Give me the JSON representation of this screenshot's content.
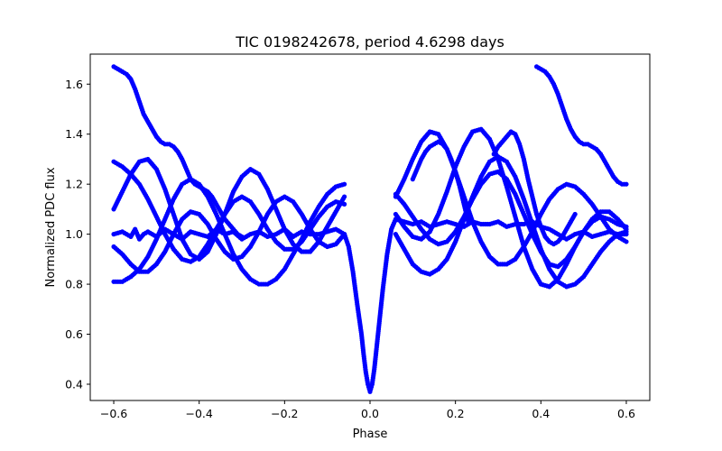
{
  "chart_data": {
    "type": "scatter",
    "title": "TIC 0198242678, period 4.6298 days",
    "xlabel": "Phase",
    "ylabel": "Normalized PDC flux",
    "xlim": [
      -0.655,
      0.655
    ],
    "ylim": [
      0.335,
      1.72
    ],
    "xticks": [
      -0.6,
      -0.4,
      -0.2,
      0.0,
      0.2,
      0.4,
      0.6
    ],
    "xtick_labels": [
      "−0.6",
      "−0.4",
      "−0.2",
      "0.0",
      "0.2",
      "0.4",
      "0.6"
    ],
    "yticks": [
      0.4,
      0.6,
      0.8,
      1.0,
      1.2,
      1.4,
      1.6
    ],
    "ytick_labels": [
      "0.4",
      "0.6",
      "0.8",
      "1.0",
      "1.2",
      "1.4",
      "1.6"
    ],
    "grid": false,
    "marker_color": "#0000ff",
    "series": [
      {
        "x": [
          -0.6,
          -0.58,
          -0.56,
          -0.55,
          -0.54,
          -0.53,
          -0.52,
          -0.5,
          -0.48,
          -0.46,
          -0.44,
          -0.42,
          -0.4,
          -0.38,
          -0.36,
          -0.34,
          -0.32,
          -0.3,
          -0.28,
          -0.26,
          -0.24,
          -0.22,
          -0.2,
          -0.18,
          -0.16,
          -0.14,
          -0.12,
          -0.1,
          -0.08,
          -0.06,
          -0.05,
          -0.04,
          -0.03,
          -0.02,
          -0.015,
          -0.01,
          -0.005,
          0.0,
          0.005,
          0.01,
          0.015,
          0.02,
          0.03,
          0.04,
          0.05,
          0.06,
          0.08,
          0.1,
          0.12,
          0.14,
          0.16,
          0.18,
          0.2,
          0.22,
          0.24,
          0.26,
          0.28,
          0.3,
          0.32,
          0.34,
          0.36,
          0.38,
          0.4,
          0.42,
          0.44,
          0.46,
          0.48,
          0.5,
          0.52,
          0.54,
          0.56,
          0.58,
          0.6
        ],
        "y": [
          1.0,
          1.01,
          0.99,
          1.02,
          0.98,
          1.0,
          1.01,
          0.99,
          1.02,
          1.0,
          0.98,
          1.01,
          1.0,
          0.99,
          1.02,
          1.0,
          1.01,
          0.98,
          1.0,
          1.01,
          0.99,
          1.0,
          1.02,
          0.99,
          1.01,
          1.0,
          1.0,
          1.01,
          1.02,
          1.0,
          0.95,
          0.85,
          0.72,
          0.6,
          0.52,
          0.45,
          0.4,
          0.37,
          0.4,
          0.46,
          0.54,
          0.62,
          0.78,
          0.92,
          1.02,
          1.06,
          1.05,
          1.04,
          1.05,
          1.03,
          1.04,
          1.05,
          1.04,
          1.03,
          1.05,
          1.04,
          1.04,
          1.05,
          1.03,
          1.04,
          1.04,
          1.05,
          1.03,
          1.02,
          1.0,
          0.98,
          1.0,
          1.01,
          0.99,
          1.0,
          1.01,
          1.0,
          1.0
        ]
      },
      {
        "x": [
          -0.6,
          -0.58,
          -0.56,
          -0.54,
          -0.52,
          -0.5,
          -0.48,
          -0.46,
          -0.44,
          -0.42,
          -0.4,
          -0.38,
          -0.36,
          -0.34,
          -0.32,
          -0.3,
          -0.28,
          -0.26,
          -0.24,
          -0.22,
          -0.2,
          -0.18,
          -0.16,
          -0.14,
          -0.12,
          -0.1,
          -0.08,
          -0.06,
          0.06,
          0.08,
          0.1,
          0.12,
          0.14,
          0.16,
          0.18,
          0.2,
          0.22,
          0.24,
          0.26,
          0.28,
          0.3,
          0.32,
          0.34,
          0.36,
          0.38,
          0.4,
          0.42,
          0.44,
          0.46,
          0.48,
          0.5,
          0.52,
          0.54,
          0.56,
          0.58,
          0.6
        ],
        "y": [
          1.29,
          1.27,
          1.24,
          1.2,
          1.14,
          1.07,
          1.0,
          0.94,
          0.9,
          0.89,
          0.91,
          0.96,
          1.02,
          1.08,
          1.13,
          1.15,
          1.13,
          1.08,
          1.02,
          0.97,
          0.94,
          0.94,
          0.97,
          1.02,
          1.07,
          1.11,
          1.13,
          1.12,
          1.15,
          1.22,
          1.3,
          1.37,
          1.41,
          1.4,
          1.34,
          1.25,
          1.15,
          1.05,
          0.97,
          0.91,
          0.88,
          0.88,
          0.9,
          0.95,
          1.01,
          1.08,
          1.14,
          1.18,
          1.2,
          1.19,
          1.16,
          1.12,
          1.07,
          1.02,
          0.99,
          0.97
        ]
      },
      {
        "x": [
          -0.6,
          -0.58,
          -0.56,
          -0.54,
          -0.52,
          -0.5,
          -0.48,
          -0.46,
          -0.44,
          -0.42,
          -0.4,
          -0.38,
          -0.36,
          -0.34,
          -0.32,
          -0.3,
          -0.28,
          -0.26,
          -0.24,
          -0.22,
          -0.2,
          -0.18,
          -0.16,
          -0.14,
          -0.12,
          -0.1,
          -0.08,
          -0.06,
          0.06,
          0.08,
          0.1,
          0.12,
          0.14,
          0.16,
          0.18,
          0.2,
          0.22,
          0.24,
          0.26,
          0.28,
          0.3,
          0.32,
          0.34,
          0.36,
          0.38,
          0.4,
          0.42,
          0.44,
          0.46,
          0.48,
          0.5,
          0.52,
          0.54,
          0.56,
          0.58,
          0.6
        ],
        "y": [
          0.81,
          0.81,
          0.83,
          0.86,
          0.91,
          0.98,
          1.06,
          1.14,
          1.2,
          1.22,
          1.2,
          1.15,
          1.08,
          1.0,
          0.92,
          0.86,
          0.82,
          0.8,
          0.8,
          0.82,
          0.86,
          0.92,
          0.98,
          1.05,
          1.11,
          1.16,
          1.19,
          1.2,
          1.0,
          0.94,
          0.88,
          0.85,
          0.84,
          0.86,
          0.9,
          0.97,
          1.06,
          1.15,
          1.23,
          1.29,
          1.31,
          1.29,
          1.23,
          1.14,
          1.04,
          0.94,
          0.86,
          0.81,
          0.79,
          0.8,
          0.83,
          0.88,
          0.93,
          0.97,
          1.0,
          1.01
        ]
      },
      {
        "x": [
          -0.6,
          -0.58,
          -0.56,
          -0.54,
          -0.52,
          -0.5,
          -0.48,
          -0.46,
          -0.44,
          -0.42,
          -0.4,
          -0.38,
          -0.36,
          -0.34,
          -0.32,
          -0.3,
          -0.28,
          -0.26,
          -0.24,
          -0.22,
          -0.2,
          -0.18,
          -0.16,
          -0.14,
          -0.12,
          -0.1,
          -0.08,
          -0.06,
          0.06,
          0.08,
          0.1,
          0.12,
          0.14,
          0.16,
          0.18,
          0.2,
          0.22,
          0.24,
          0.26,
          0.28,
          0.3,
          0.32,
          0.34,
          0.36,
          0.38,
          0.4,
          0.42,
          0.44,
          0.46,
          0.48,
          0.5,
          0.52,
          0.54,
          0.56,
          0.58,
          0.6
        ],
        "y": [
          1.1,
          1.17,
          1.24,
          1.29,
          1.3,
          1.26,
          1.18,
          1.08,
          0.98,
          0.92,
          0.9,
          0.93,
          1.0,
          1.08,
          1.17,
          1.23,
          1.26,
          1.24,
          1.18,
          1.1,
          1.02,
          0.96,
          0.93,
          0.93,
          0.97,
          1.03,
          1.09,
          1.15,
          1.08,
          1.03,
          0.99,
          0.98,
          1.01,
          1.08,
          1.17,
          1.27,
          1.35,
          1.41,
          1.42,
          1.38,
          1.3,
          1.19,
          1.07,
          0.95,
          0.86,
          0.8,
          0.79,
          0.82,
          0.88,
          0.95,
          1.01,
          1.05,
          1.07,
          1.06,
          1.04,
          1.03
        ]
      },
      {
        "x": [
          -0.6,
          -0.58,
          -0.56,
          -0.54,
          -0.52,
          -0.5,
          -0.48,
          -0.46,
          -0.44,
          -0.42,
          -0.4,
          -0.38,
          -0.36,
          -0.34,
          -0.32,
          -0.3,
          -0.28,
          -0.26,
          -0.24,
          -0.22,
          -0.2,
          -0.18,
          -0.16,
          -0.14,
          -0.12,
          -0.1,
          -0.08,
          -0.06,
          0.06,
          0.08,
          0.1,
          0.12,
          0.14,
          0.16,
          0.18,
          0.2,
          0.22,
          0.24,
          0.26,
          0.28,
          0.3,
          0.32,
          0.34,
          0.36,
          0.38,
          0.4,
          0.42,
          0.44,
          0.46,
          0.48,
          0.5,
          0.52,
          0.54,
          0.56,
          0.58,
          0.6
        ],
        "y": [
          0.95,
          0.92,
          0.88,
          0.85,
          0.85,
          0.88,
          0.93,
          1.0,
          1.06,
          1.09,
          1.08,
          1.04,
          0.98,
          0.93,
          0.9,
          0.91,
          0.95,
          1.01,
          1.08,
          1.13,
          1.15,
          1.13,
          1.08,
          1.02,
          0.97,
          0.95,
          0.96,
          1.0,
          1.16,
          1.12,
          1.07,
          1.02,
          0.98,
          0.96,
          0.97,
          1.01,
          1.07,
          1.14,
          1.2,
          1.24,
          1.25,
          1.22,
          1.16,
          1.08,
          1.0,
          0.93,
          0.88,
          0.87,
          0.9,
          0.95,
          1.01,
          1.06,
          1.09,
          1.09,
          1.06,
          1.02
        ]
      },
      {
        "x": [
          -0.6,
          -0.59,
          -0.58,
          -0.57,
          -0.56,
          -0.55,
          -0.54,
          -0.53,
          -0.52,
          -0.51,
          -0.5,
          -0.49,
          -0.48,
          -0.47,
          -0.46,
          -0.45,
          -0.44,
          -0.43,
          -0.42,
          -0.41,
          -0.4,
          -0.39,
          -0.38,
          -0.37,
          -0.36,
          -0.35,
          -0.34,
          -0.33,
          -0.32,
          -0.31,
          -0.3
        ],
        "y": [
          1.67,
          1.66,
          1.65,
          1.64,
          1.62,
          1.58,
          1.53,
          1.48,
          1.45,
          1.42,
          1.39,
          1.37,
          1.36,
          1.36,
          1.35,
          1.33,
          1.3,
          1.26,
          1.22,
          1.2,
          1.19,
          1.18,
          1.17,
          1.15,
          1.12,
          1.09,
          1.06,
          1.04,
          1.02,
          1.0,
          0.99
        ]
      },
      {
        "x": [
          0.39,
          0.4,
          0.41,
          0.42,
          0.43,
          0.44,
          0.45,
          0.46,
          0.47,
          0.48,
          0.49,
          0.5,
          0.51,
          0.52,
          0.53,
          0.54,
          0.55,
          0.56,
          0.57,
          0.58,
          0.59,
          0.6
        ],
        "y": [
          1.67,
          1.66,
          1.65,
          1.63,
          1.6,
          1.56,
          1.51,
          1.46,
          1.42,
          1.39,
          1.37,
          1.36,
          1.36,
          1.35,
          1.34,
          1.32,
          1.29,
          1.26,
          1.23,
          1.21,
          1.2,
          1.2
        ]
      },
      {
        "x": [
          0.29,
          0.3,
          0.31,
          0.32,
          0.33,
          0.34,
          0.35,
          0.36,
          0.37,
          0.38,
          0.39,
          0.4,
          0.41,
          0.42,
          0.43,
          0.44,
          0.45,
          0.46,
          0.47,
          0.48
        ],
        "y": [
          1.32,
          1.35,
          1.37,
          1.39,
          1.41,
          1.4,
          1.36,
          1.3,
          1.22,
          1.15,
          1.08,
          1.03,
          0.99,
          0.97,
          0.96,
          0.97,
          0.99,
          1.02,
          1.05,
          1.08
        ]
      },
      {
        "x": [
          0.1,
          0.11,
          0.12,
          0.13,
          0.14,
          0.15,
          0.16,
          0.17,
          0.18,
          0.19,
          0.2,
          0.21,
          0.22,
          0.23
        ],
        "y": [
          1.22,
          1.26,
          1.3,
          1.33,
          1.35,
          1.36,
          1.37,
          1.36,
          1.34,
          1.3,
          1.25,
          1.19,
          1.12,
          1.05
        ]
      }
    ]
  }
}
